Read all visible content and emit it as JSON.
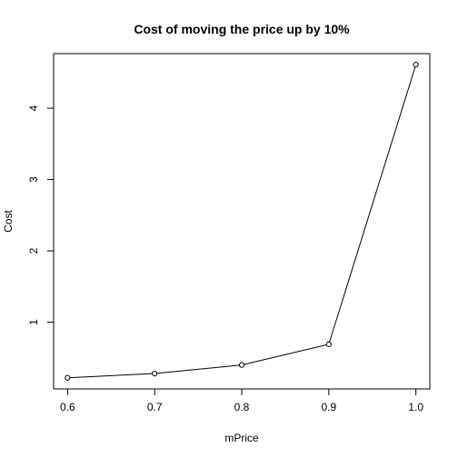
{
  "chart_data": {
    "type": "line",
    "title": "Cost of moving the price up by 10%",
    "xlabel": "mPrice",
    "ylabel": "Cost",
    "x": [
      0.6,
      0.7,
      0.8,
      0.9,
      1.0
    ],
    "y": [
      0.22,
      0.28,
      0.4,
      0.69,
      4.61
    ],
    "xlim": [
      0.584,
      1.016
    ],
    "ylim": [
      0.064,
      4.766
    ],
    "xticks": [
      0.6,
      0.7,
      0.8,
      0.9,
      1.0
    ],
    "xtick_labels": [
      "0.6",
      "0.7",
      "0.8",
      "0.9",
      "1.0"
    ],
    "yticks": [
      1,
      2,
      3,
      4
    ],
    "ytick_labels": [
      "1",
      "2",
      "3",
      "4"
    ],
    "grid": false,
    "markers": "open-circle"
  }
}
